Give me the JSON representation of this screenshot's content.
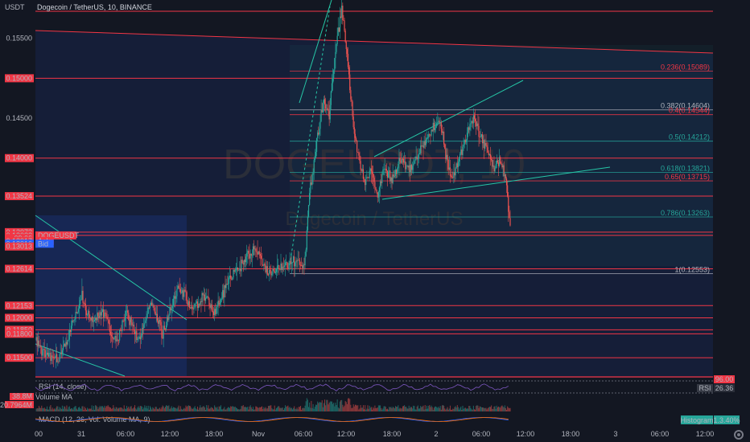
{
  "header": {
    "unit": "USDT",
    "title": "Dogecoin / TetherUS, 10, BINANCE"
  },
  "watermark": {
    "symbol": "DOGEUSDT, 10",
    "name": "Dogecoin / TetherUS"
  },
  "colors": {
    "bg": "#131722",
    "up": "#26a69a",
    "down": "#ef5350",
    "level": "#f23645",
    "fib_green": "#26a69a",
    "fib_red": "#f23645",
    "fib_gray": "#787b86",
    "trend": "#26c6a6"
  },
  "price_axis": {
    "ticks": [
      "0.15500",
      "0.14500"
    ]
  },
  "price_labels": [
    {
      "text": "0.15000",
      "price": 0.15,
      "color": "#f23645"
    },
    {
      "text": "0.14000",
      "price": 0.14,
      "color": "#f23645"
    },
    {
      "text": "0.13524",
      "price": 0.13524,
      "color": "#f23645"
    },
    {
      "text": "0.13073",
      "price": 0.13073,
      "color": "#f23645"
    },
    {
      "text": "0.13032",
      "price": 0.13032,
      "color": "#f23645"
    },
    {
      "text": "09:06",
      "price": 0.12998,
      "color": "#f23645"
    },
    {
      "text": "0.13017",
      "price": 0.12963,
      "color": "#f23645"
    },
    {
      "text": "0.13016",
      "price": 0.12928,
      "color": "#2962ff"
    },
    {
      "text": "0.13013",
      "price": 0.12893,
      "color": "#f23645"
    },
    {
      "text": "0.12614",
      "price": 0.12614,
      "color": "#f23645"
    },
    {
      "text": "0.12153",
      "price": 0.12153,
      "color": "#f23645"
    },
    {
      "text": "0.12000",
      "price": 0.12,
      "color": "#f23645"
    },
    {
      "text": "0.11850",
      "price": 0.1185,
      "color": "#f23645"
    },
    {
      "text": "0.11800",
      "price": 0.118,
      "color": "#f23645"
    },
    {
      "text": "0.11500",
      "price": 0.115,
      "color": "#f23645"
    }
  ],
  "tags": [
    {
      "text": "DOGEUSDT",
      "price": 0.13032,
      "color": "#f23645"
    },
    {
      "text": "Ask",
      "price": 0.12963,
      "color": "#f23645"
    },
    {
      "text": "Bid",
      "price": 0.12928,
      "color": "#2962ff"
    }
  ],
  "fib_levels": [
    {
      "label": "0.236(0.15089)",
      "price": 0.15089,
      "color": "#f23645"
    },
    {
      "label": "0.382(0.14604)",
      "price": 0.14604,
      "color": "#b2b5be"
    },
    {
      "label": "0.4(0.14544)",
      "price": 0.14544,
      "color": "#f23645"
    },
    {
      "label": "0.5(0.14212)",
      "price": 0.14212,
      "color": "#26a69a"
    },
    {
      "label": "0.618(0.13821)",
      "price": 0.13821,
      "color": "#26a69a"
    },
    {
      "label": "0.65(0.13715)",
      "price": 0.13715,
      "color": "#f23645"
    },
    {
      "label": "0.786(0.13263)",
      "price": 0.13263,
      "color": "#26a69a"
    },
    {
      "label": "1(0.12553)",
      "price": 0.12553,
      "color": "#b2b5be"
    }
  ],
  "indicators": {
    "rsi": {
      "label": "RSI (14, close)",
      "upper": "96.00",
      "badge": "RSI",
      "value": "26.36"
    },
    "volume": {
      "label": "Volume MA",
      "value1": "38.8M",
      "value2": "20.7964M"
    },
    "macd": {
      "label": "MACD (12, 26, Vol: Volume MA, 9)",
      "badge": "Histogram",
      "value": "1.3.40%"
    }
  },
  "time_axis": [
    "00",
    "31",
    "06:00",
    "12:00",
    "18:00",
    "Nov",
    "06:00",
    "12:00",
    "18:00",
    "2",
    "06:00",
    "12:00",
    "18:00",
    "3",
    "06:00",
    "12:00"
  ],
  "chart_data": {
    "type": "candlestick",
    "title": "Dogecoin / TetherUS, 10, BINANCE",
    "interval": "10",
    "ylabel": "USDT",
    "ylim": [
      0.1125,
      0.1598
    ],
    "grid": false,
    "path_anchors": [
      [
        0,
        0.1172
      ],
      [
        10,
        0.1155
      ],
      [
        25,
        0.1146
      ],
      [
        38,
        0.118
      ],
      [
        52,
        0.1225
      ],
      [
        62,
        0.1195
      ],
      [
        75,
        0.121
      ],
      [
        90,
        0.1168
      ],
      [
        102,
        0.1205
      ],
      [
        115,
        0.117
      ],
      [
        128,
        0.122
      ],
      [
        142,
        0.118
      ],
      [
        160,
        0.124
      ],
      [
        175,
        0.121
      ],
      [
        190,
        0.1228
      ],
      [
        200,
        0.1205
      ],
      [
        215,
        0.1245
      ],
      [
        230,
        0.1268
      ],
      [
        245,
        0.129
      ],
      [
        260,
        0.1255
      ],
      [
        272,
        0.1262
      ],
      [
        288,
        0.127
      ],
      [
        300,
        0.1262
      ],
      [
        306,
        0.1355
      ],
      [
        315,
        0.143
      ],
      [
        322,
        0.147
      ],
      [
        328,
        0.1455
      ],
      [
        335,
        0.154
      ],
      [
        342,
        0.1585
      ],
      [
        348,
        0.153
      ],
      [
        354,
        0.145
      ],
      [
        360,
        0.1405
      ],
      [
        368,
        0.137
      ],
      [
        375,
        0.1385
      ],
      [
        382,
        0.1352
      ],
      [
        390,
        0.139
      ],
      [
        398,
        0.1372
      ],
      [
        408,
        0.1398
      ],
      [
        418,
        0.1382
      ],
      [
        428,
        0.141
      ],
      [
        440,
        0.143
      ],
      [
        452,
        0.1448
      ],
      [
        458,
        0.1402
      ],
      [
        465,
        0.1372
      ],
      [
        472,
        0.14
      ],
      [
        480,
        0.1422
      ],
      [
        488,
        0.1452
      ],
      [
        496,
        0.143
      ],
      [
        504,
        0.1412
      ],
      [
        512,
        0.1385
      ],
      [
        518,
        0.14
      ],
      [
        526,
        0.1372
      ],
      [
        530,
        0.131
      ]
    ],
    "last_price": 0.13032,
    "levels": [
      0.15,
      0.14,
      0.13524,
      0.13073,
      0.13032,
      0.12614,
      0.12153,
      0.12,
      0.1185,
      0.118,
      0.115
    ]
  }
}
